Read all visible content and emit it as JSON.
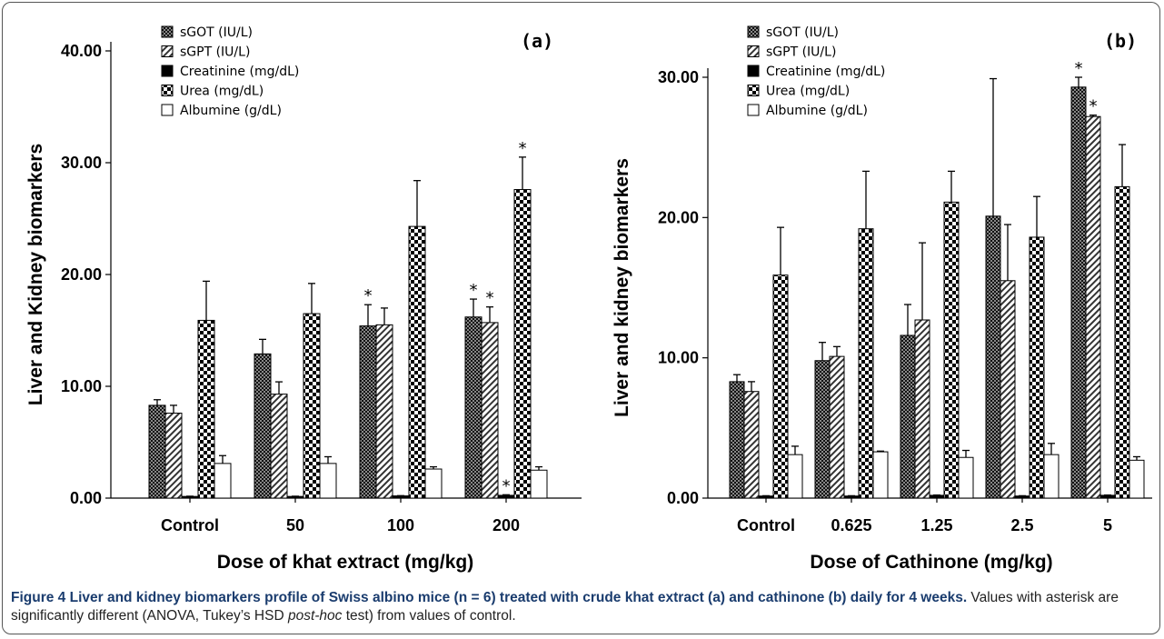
{
  "chart_data": [
    {
      "type": "bar",
      "panel_label": "(a)",
      "xlabel": "Dose of khat extract (mg/kg)",
      "ylabel": "Liver and Kidney biomarkers",
      "ylim": [
        0,
        40
      ],
      "yticks": [
        "0.00",
        "10.00",
        "20.00",
        "30.00",
        "40.00"
      ],
      "categories": [
        "Control",
        "50",
        "100",
        "200"
      ],
      "legend_position": "top-left",
      "series": [
        {
          "name": "sGOT (IU/L)",
          "pattern": "dense-check",
          "values": [
            8.3,
            12.9,
            15.4,
            16.2
          ],
          "errors": [
            0.5,
            1.3,
            1.9,
            1.6
          ],
          "significant": [
            false,
            false,
            true,
            true
          ]
        },
        {
          "name": "sGPT (IU/L)",
          "pattern": "diagonal",
          "values": [
            7.6,
            9.3,
            15.5,
            15.7
          ],
          "errors": [
            0.7,
            1.1,
            1.5,
            1.4
          ],
          "significant": [
            false,
            false,
            false,
            true
          ]
        },
        {
          "name": "Creatinine (mg/dL)",
          "pattern": "solid",
          "values": [
            0.15,
            0.15,
            0.2,
            0.25
          ],
          "errors": [
            0.02,
            0.02,
            0.02,
            0.05
          ],
          "significant": [
            false,
            false,
            false,
            true
          ]
        },
        {
          "name": "Urea (mg/dL)",
          "pattern": "checker",
          "values": [
            15.9,
            16.5,
            24.3,
            27.6
          ],
          "errors": [
            3.5,
            2.7,
            4.1,
            2.9
          ],
          "significant": [
            false,
            false,
            false,
            true
          ]
        },
        {
          "name": "Albumine (g/dL)",
          "pattern": "open",
          "values": [
            3.1,
            3.1,
            2.6,
            2.5
          ],
          "errors": [
            0.7,
            0.6,
            0.2,
            0.3
          ],
          "significant": [
            false,
            false,
            false,
            false
          ]
        }
      ]
    },
    {
      "type": "bar",
      "panel_label": "(b)",
      "xlabel": "Dose of Cathinone (mg/kg)",
      "ylabel": "Liver and kidney biomarkers",
      "ylim": [
        0,
        30
      ],
      "yticks": [
        "0.00",
        "10.00",
        "20.00",
        "30.00"
      ],
      "categories": [
        "Control",
        "0.625",
        "1.25",
        "2.5",
        "5"
      ],
      "legend_position": "top-left",
      "series": [
        {
          "name": "sGOT (IU/L)",
          "pattern": "dense-check",
          "values": [
            8.3,
            9.8,
            11.6,
            20.1,
            29.3
          ],
          "errors": [
            0.5,
            1.3,
            2.2,
            9.8,
            0.7
          ],
          "significant": [
            false,
            false,
            false,
            false,
            true
          ]
        },
        {
          "name": "sGPT (IU/L)",
          "pattern": "diagonal",
          "values": [
            7.6,
            10.1,
            12.7,
            15.5,
            27.2
          ],
          "errors": [
            0.7,
            0.7,
            5.5,
            4.0,
            0.1
          ],
          "significant": [
            false,
            false,
            false,
            false,
            true
          ]
        },
        {
          "name": "Creatinine (mg/dL)",
          "pattern": "solid",
          "values": [
            0.15,
            0.15,
            0.2,
            0.15,
            0.2
          ],
          "errors": [
            0.02,
            0.02,
            0.02,
            0.02,
            0.02
          ],
          "significant": [
            false,
            false,
            false,
            false,
            false
          ]
        },
        {
          "name": "Urea (mg/dL)",
          "pattern": "checker",
          "values": [
            15.9,
            19.2,
            21.1,
            18.6,
            22.2
          ],
          "errors": [
            3.4,
            4.1,
            2.2,
            2.9,
            3.0
          ],
          "significant": [
            false,
            false,
            false,
            false,
            false
          ]
        },
        {
          "name": "Albumine (g/dL)",
          "pattern": "open",
          "values": [
            3.1,
            3.3,
            2.9,
            3.1,
            2.7
          ],
          "errors": [
            0.6,
            0.05,
            0.5,
            0.8,
            0.25
          ],
          "significant": [
            false,
            false,
            false,
            false,
            false
          ]
        }
      ]
    }
  ],
  "significance_marker": "*",
  "caption": {
    "bold": "Figure 4 Liver and kidney biomarkers profile of Swiss albino mice (n = 6) treated with crude khat extract (a) and cathinone (b) daily for 4 weeks.",
    "text_before_italic": " Values with asterisk are significantly different (ANOVA, Tukey’s HSD ",
    "italic": "post-hoc",
    "text_after_italic": " test) from values of control."
  }
}
